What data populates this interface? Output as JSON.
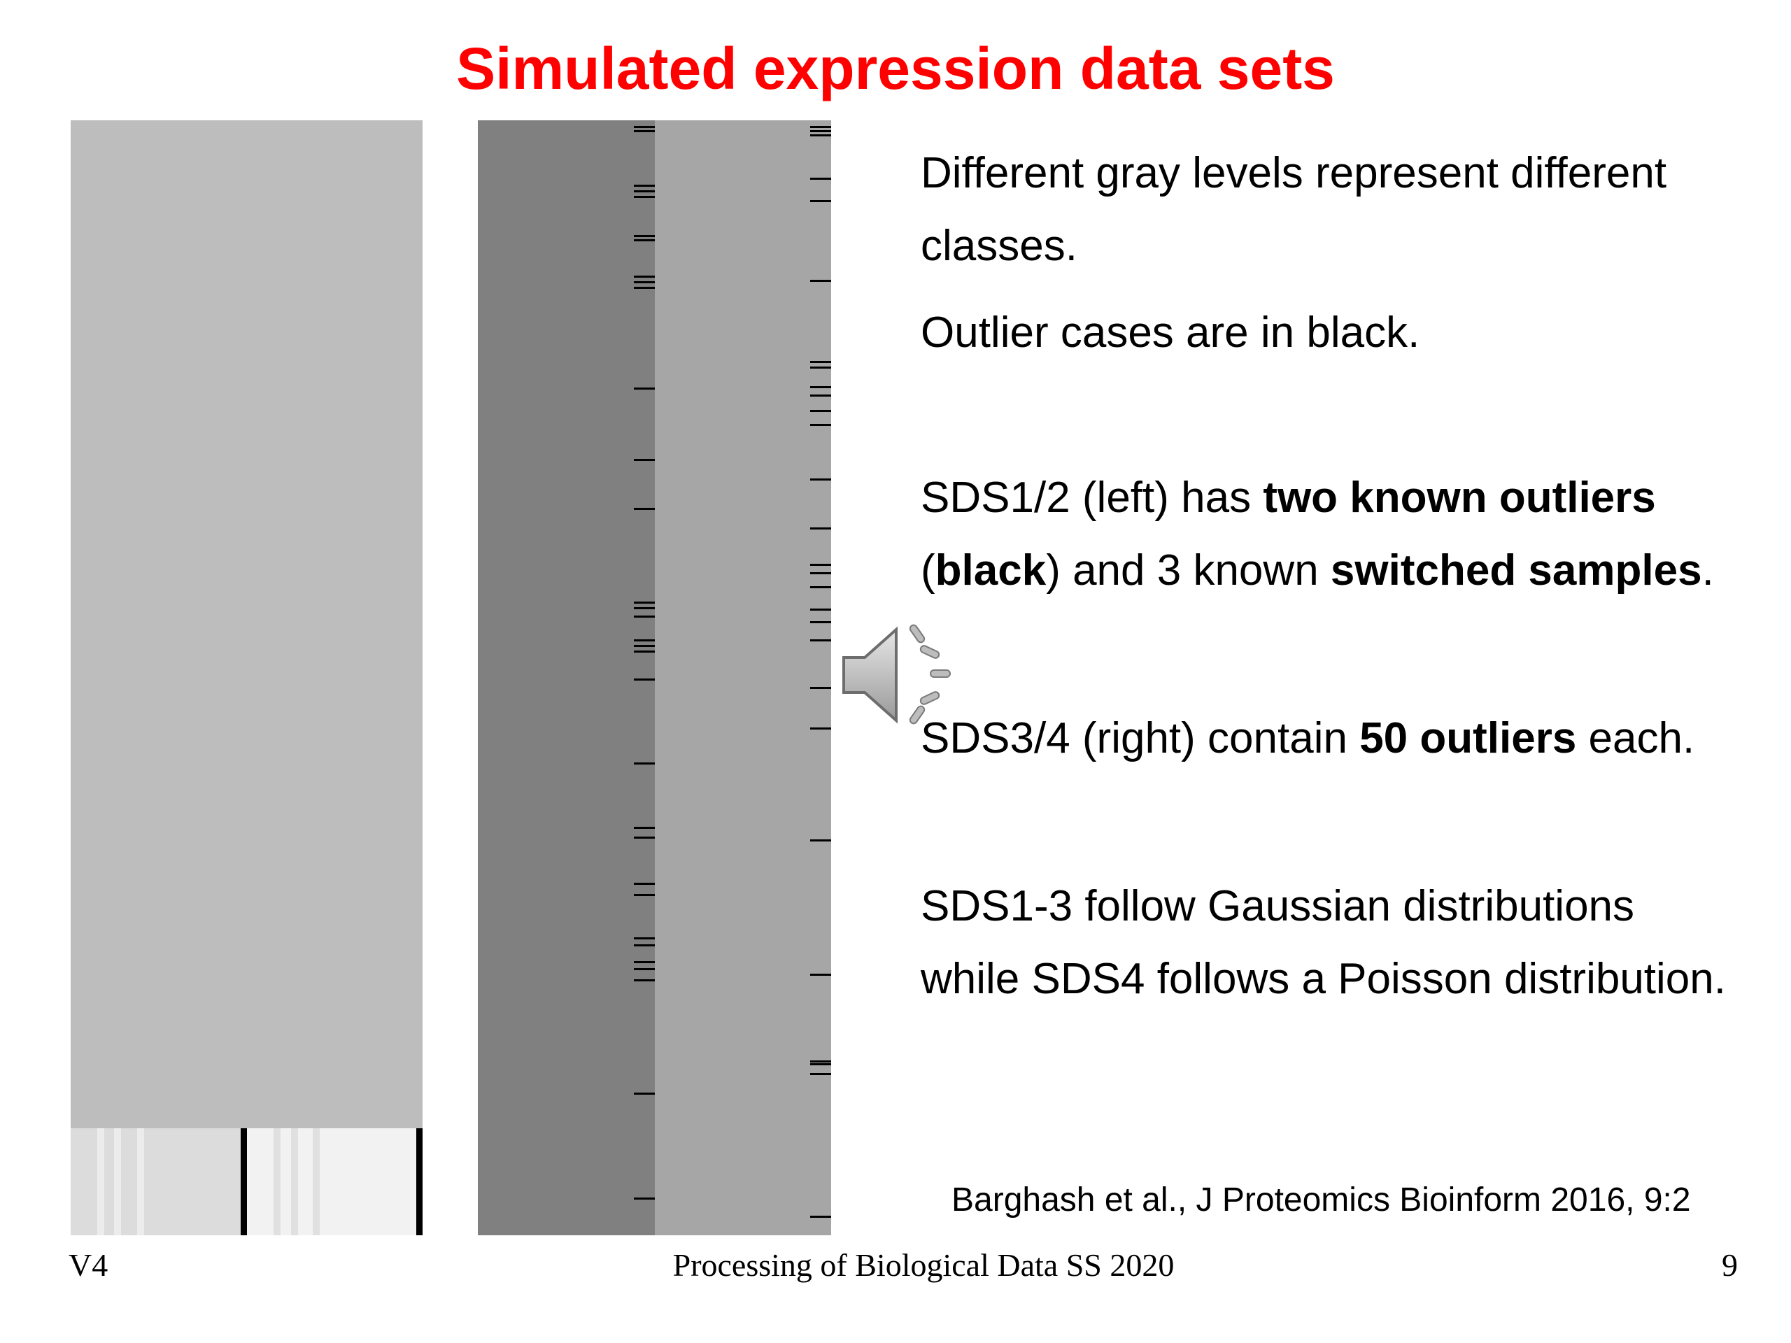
{
  "slide": {
    "title": "Simulated expression data sets",
    "title_color": "#ff0000"
  },
  "text": {
    "p1": "Different gray levels represent different classes.",
    "p2": "Outlier cases are in black.",
    "p3": {
      "a": "SDS1/2 (left) has ",
      "b": "two known outliers",
      "c": "(",
      "d": "black",
      "e": ") and 3 known ",
      "f": "switched samples",
      "g": "."
    },
    "p4": {
      "a": "SDS3/4 (right) contain ",
      "b": "50 outliers",
      "c": " each."
    },
    "p5": {
      "a": "SDS1-3 follow Gaussian distributions",
      "b": "while SDS4 follows a Poisson distribution."
    },
    "citation": "Barghash et al., J Proteomics Bioinform 2016, 9:2"
  },
  "footer": {
    "left": "V4",
    "center": "Processing of Biological Data SS 2020",
    "right": "9"
  },
  "heatmaps": {
    "left_colors": {
      "main": "#bdbdbd",
      "band_a": "#dcdcdc",
      "band_b": "#f2f2f2",
      "outlier": "#000000"
    },
    "right_colors": {
      "col1": "#808080",
      "col2": "#a6a6a6",
      "outlier": "#000000"
    }
  },
  "icons": {
    "audio": "speaker-icon"
  }
}
